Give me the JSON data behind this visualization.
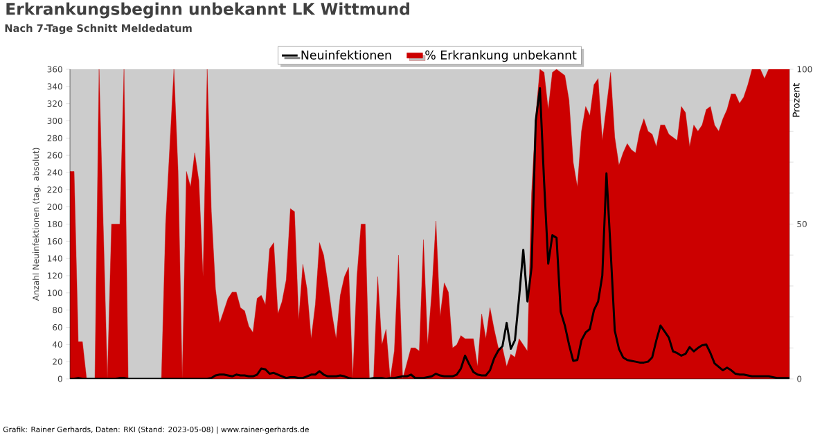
{
  "chart_data": {
    "type": "line",
    "title": "Erkrankungsbeginn unbekannt LK Wittmund",
    "subtitle": "Nach 7-Tage Schnitt Meldedatum",
    "ylabel": "Anzahl Neuinfektionen (tag. absolut)",
    "y2label": "Prozent",
    "annotations": [
      "Grafik: Rainer Gerhards, Daten: RKI (Stand: 2023-05-08) | www.rainer-gerhards.de"
    ],
    "legend": "top",
    "categories": [
      null,
      null,
      null,
      null,
      null,
      null,
      null,
      null,
      null,
      null,
      null,
      null,
      null,
      null,
      null,
      null,
      null,
      null,
      null,
      null,
      null,
      null,
      null,
      null,
      null,
      null,
      null,
      null,
      null,
      null,
      null,
      null,
      null,
      null,
      null,
      null,
      null,
      null,
      null,
      null,
      null,
      null,
      null,
      null,
      null,
      null,
      null,
      null,
      null,
      null,
      null,
      null,
      null,
      null,
      null,
      null,
      null,
      null,
      null,
      null,
      null,
      null,
      null,
      null,
      null,
      null,
      null,
      null,
      null,
      null,
      null,
      null,
      null,
      null,
      null,
      null,
      null,
      null,
      null,
      null,
      null,
      null,
      null,
      null,
      null,
      null,
      null,
      null,
      null,
      null,
      null,
      null,
      null,
      null,
      null,
      null,
      null,
      null,
      null,
      null,
      null,
      null,
      null,
      null,
      null,
      null,
      null,
      null,
      null,
      null,
      null,
      null,
      null,
      null,
      null,
      null,
      null,
      null,
      null,
      null,
      null,
      null,
      null,
      null,
      null,
      null,
      null,
      null,
      null,
      null,
      null,
      null,
      null,
      null,
      null,
      null,
      null,
      null,
      null,
      null,
      null,
      null,
      null,
      null,
      null,
      null,
      null,
      null,
      null,
      null,
      null,
      null,
      null,
      null,
      null,
      null,
      null,
      null,
      null,
      null,
      null,
      null,
      null,
      null,
      null,
      null,
      null,
      null,
      null,
      null,
      null,
      null,
      null,
      null
    ],
    "ylim": [
      0,
      360
    ],
    "yticks": [
      0,
      20,
      40,
      60,
      80,
      100,
      120,
      140,
      160,
      180,
      200,
      220,
      240,
      260,
      280,
      300,
      320,
      340,
      360
    ],
    "y2lim": [
      0,
      100
    ],
    "y2ticks": [
      0,
      {
        "value": 10,
        "label": null
      },
      {
        "value": 20,
        "label": null
      },
      {
        "value": 30,
        "label": null
      },
      {
        "value": 40,
        "label": null
      },
      50,
      {
        "value": 60,
        "label": null
      },
      {
        "value": 70,
        "label": null
      },
      {
        "value": 80,
        "label": null
      },
      {
        "value": 90,
        "label": null
      },
      100
    ],
    "series": [
      {
        "name": "Neuinfektionen",
        "color": "#000000",
        "values": [
          0,
          0,
          1,
          0,
          0,
          0,
          0,
          0,
          0,
          0,
          0,
          0,
          1,
          1,
          0,
          0,
          0,
          0,
          0,
          0,
          0,
          0,
          0,
          0,
          0,
          0,
          0,
          0,
          0,
          0,
          0,
          0,
          0,
          0,
          1,
          4,
          5,
          5,
          4,
          3,
          5,
          4,
          4,
          3,
          3,
          5,
          12,
          11,
          6,
          7,
          5,
          3,
          1,
          2,
          2,
          1,
          1,
          3,
          5,
          5,
          9,
          5,
          3,
          3,
          3,
          4,
          3,
          1,
          0,
          0,
          0,
          0,
          0,
          1,
          1,
          1,
          0,
          1,
          1,
          2,
          3,
          3,
          5,
          1,
          1,
          1,
          2,
          3,
          6,
          4,
          3,
          3,
          3,
          5,
          12,
          27,
          17,
          8,
          5,
          4,
          4,
          10,
          24,
          33,
          38,
          65,
          35,
          45,
          95,
          150,
          90,
          130,
          300,
          338,
          230,
          134,
          167,
          164,
          78,
          62,
          40,
          21,
          22,
          45,
          54,
          58,
          80,
          90,
          120,
          239,
          150,
          56,
          35,
          25,
          22,
          21,
          20,
          19,
          19,
          20,
          25,
          45,
          62,
          55,
          48,
          32,
          30,
          27,
          29,
          37,
          32,
          36,
          39,
          40,
          30,
          18,
          14,
          10,
          13,
          10,
          6,
          5,
          5,
          4,
          3,
          3,
          3,
          3,
          3,
          2,
          1,
          1,
          1,
          1
        ]
      },
      {
        "name": "% Erkrankung unbekannt",
        "type": "area",
        "axis": "y2",
        "color": "#cc0000",
        "values": [
          67,
          67,
          12,
          12,
          0,
          0,
          0,
          100,
          50,
          0,
          50,
          50,
          50,
          100,
          0,
          0,
          0,
          0,
          0,
          0,
          0,
          0,
          0,
          50,
          75,
          100,
          67,
          0,
          67,
          62,
          73,
          64,
          33,
          100,
          54,
          29,
          18,
          22,
          26,
          28,
          28,
          23,
          22,
          17,
          15,
          26,
          27,
          24,
          42,
          44,
          21,
          25,
          32,
          55,
          54,
          19,
          37,
          29,
          13,
          24,
          44,
          40,
          31,
          21,
          13,
          27,
          33,
          36,
          0,
          33,
          50,
          50,
          0,
          0,
          33,
          11,
          16,
          0,
          9,
          40,
          0,
          5,
          10,
          10,
          9,
          45,
          11,
          28,
          51,
          20,
          31,
          28,
          10,
          11,
          14,
          13,
          13,
          13,
          4,
          21,
          13,
          23,
          16,
          10,
          10,
          4,
          8,
          7,
          13,
          11,
          9,
          60,
          85,
          100,
          99,
          87,
          99,
          100,
          99,
          98,
          90,
          70,
          62,
          80,
          88,
          85,
          95,
          97,
          77,
          88,
          99,
          78,
          69,
          73,
          76,
          74,
          73,
          80,
          84,
          80,
          79,
          75,
          82,
          82,
          79,
          78,
          77,
          88,
          86,
          75,
          82,
          80,
          82,
          87,
          88,
          82,
          80,
          84,
          87,
          92,
          92,
          89,
          91,
          95,
          100,
          100,
          100,
          97,
          100,
          100,
          100,
          100,
          100,
          100
        ]
      }
    ]
  }
}
